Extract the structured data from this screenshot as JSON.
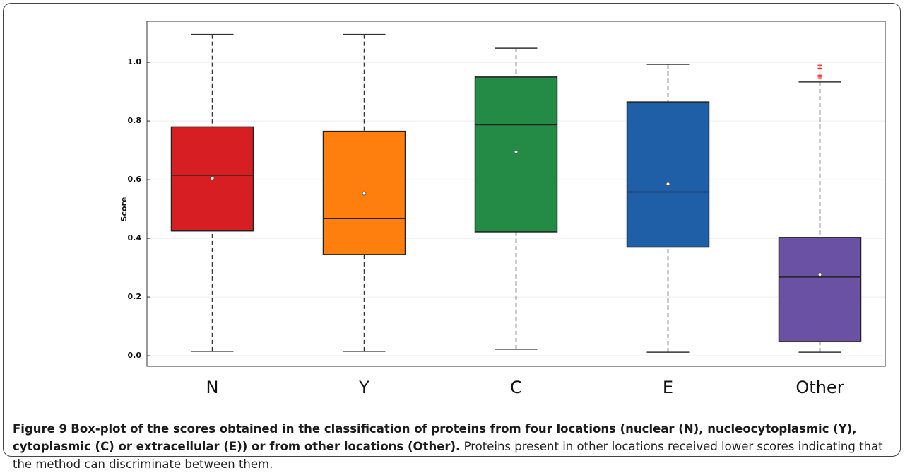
{
  "chart_data": {
    "type": "box",
    "ylabel": "Score",
    "categories": [
      "N",
      "Y",
      "C",
      "E",
      "Other"
    ],
    "boxes": [
      {
        "whislo": 0.015,
        "q1": 0.425,
        "med": 0.615,
        "q3": 0.78,
        "whishi": 1.095,
        "mean": 0.605,
        "color": "#d71e22"
      },
      {
        "whislo": 0.015,
        "q1": 0.345,
        "med": 0.467,
        "q3": 0.765,
        "whishi": 1.095,
        "mean": 0.553,
        "color": "#ff7f0e"
      },
      {
        "whislo": 0.022,
        "q1": 0.422,
        "med": 0.787,
        "q3": 0.95,
        "whishi": 1.048,
        "mean": 0.695,
        "color": "#238b45"
      },
      {
        "whislo": 0.012,
        "q1": 0.37,
        "med": 0.558,
        "q3": 0.865,
        "whishi": 0.993,
        "mean": 0.585,
        "color": "#1f5fa8"
      },
      {
        "whislo": 0.012,
        "q1": 0.048,
        "med": 0.268,
        "q3": 0.403,
        "whishi": 0.933,
        "mean": 0.277,
        "color": "#6a51a3",
        "outliers": [
          0.945,
          0.95,
          0.955,
          0.96,
          0.98,
          0.99
        ]
      }
    ],
    "outlier_color": "#ff2020",
    "ylim": [
      -0.036,
      1.14
    ],
    "yticks": [
      {
        "value": 0,
        "label": "0.0"
      },
      0.2,
      0.4,
      0.6,
      0.8,
      {
        "value": 1,
        "label": "1.0"
      }
    ],
    "grid": true
  },
  "caption": {
    "label": "Figure 9",
    "title": "Box-plot of the scores obtained in the classification of proteins from four locations (nuclear (N), nucleocytoplasmic (Y), cytoplasmic (C) or extracellular (E)) or from other locations (Other).",
    "text": "Proteins present in other locations received lower scores indicating that the method can discriminate between them."
  }
}
